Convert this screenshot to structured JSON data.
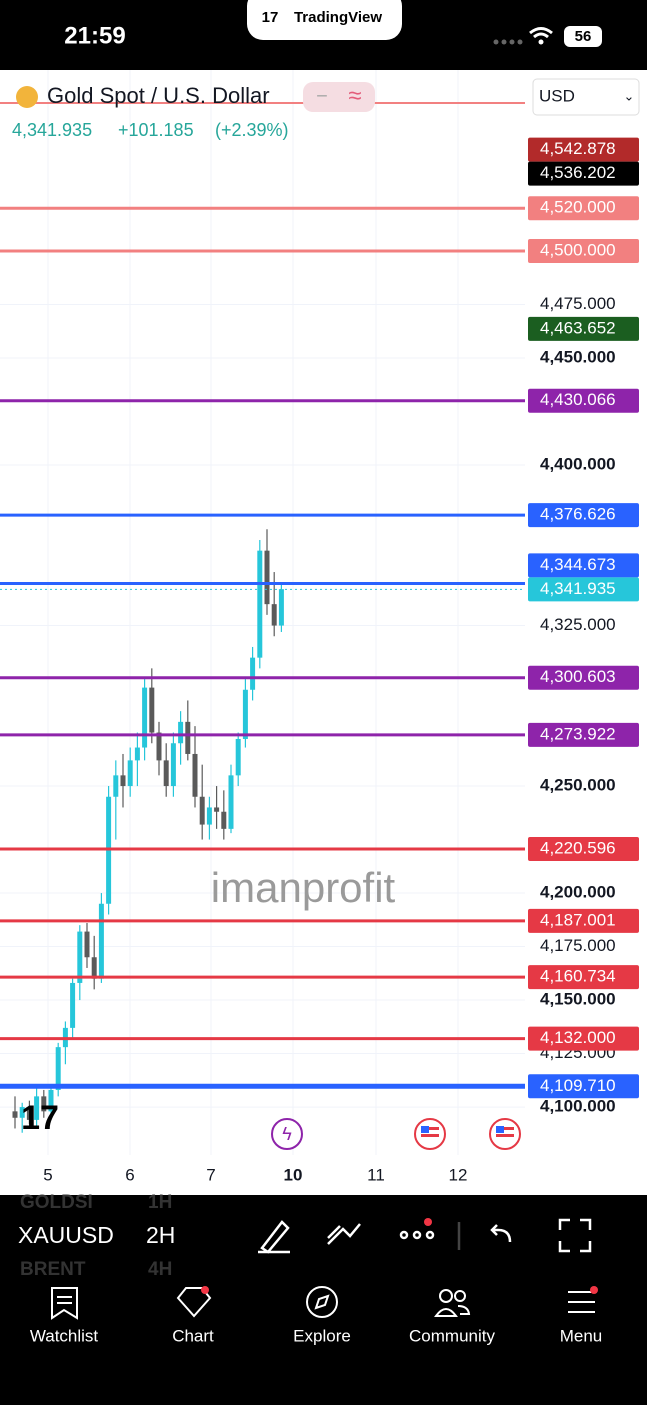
{
  "status_bar": {
    "time": "21:59",
    "app": "TradingView",
    "battery": "56"
  },
  "header": {
    "symbol_name": "Gold Spot / U.S. Dollar",
    "price": "4,341.935",
    "change": "+101.185",
    "change_pct": "(+2.39%)",
    "currency": "USD"
  },
  "chart_data": {
    "type": "candlestick",
    "ylim": [
      4077.6,
      4584.6
    ],
    "yticks": [
      {
        "value": 4475,
        "label": "4,475.000"
      },
      {
        "value": 4450,
        "label": "4,450.000"
      },
      {
        "value": 4400,
        "label": "4,400.000"
      },
      {
        "value": 4325,
        "label": "4,325.000"
      },
      {
        "value": 4250,
        "label": "4,250.000"
      },
      {
        "value": 4200,
        "label": "4,200.000"
      },
      {
        "value": 4175,
        "label": "4,175.000"
      },
      {
        "value": 4150,
        "label": "4,150.000"
      },
      {
        "value": 4125,
        "label": "4,125.000"
      },
      {
        "value": 4100,
        "label": "4,100.000"
      }
    ],
    "x_labels": [
      "5",
      "6",
      "7",
      "10",
      "11",
      "12"
    ],
    "up_color": "#26c6da",
    "down_color": "#5a5a5a",
    "candles": [
      [
        4098,
        4105,
        4090,
        4095
      ],
      [
        4095,
        4102,
        4088,
        4100
      ],
      [
        4100,
        4103,
        4092,
        4094
      ],
      [
        4094,
        4110,
        4090,
        4105
      ],
      [
        4105,
        4108,
        4095,
        4098
      ],
      [
        4098,
        4110,
        4094,
        4108
      ],
      [
        4108,
        4130,
        4105,
        4128
      ],
      [
        4128,
        4140,
        4120,
        4137
      ],
      [
        4137,
        4160,
        4132,
        4158
      ],
      [
        4158,
        4185,
        4150,
        4182
      ],
      [
        4182,
        4186,
        4165,
        4170
      ],
      [
        4170,
        4180,
        4155,
        4160
      ],
      [
        4160,
        4200,
        4158,
        4195
      ],
      [
        4195,
        4250,
        4190,
        4245
      ],
      [
        4245,
        4262,
        4225,
        4255
      ],
      [
        4255,
        4265,
        4240,
        4250
      ],
      [
        4250,
        4268,
        4245,
        4262
      ],
      [
        4262,
        4275,
        4250,
        4268
      ],
      [
        4268,
        4300,
        4262,
        4296
      ],
      [
        4296,
        4305,
        4270,
        4275
      ],
      [
        4275,
        4280,
        4255,
        4262
      ],
      [
        4262,
        4270,
        4245,
        4250
      ],
      [
        4250,
        4275,
        4245,
        4270
      ],
      [
        4270,
        4285,
        4260,
        4280
      ],
      [
        4280,
        4290,
        4262,
        4265
      ],
      [
        4265,
        4278,
        4240,
        4245
      ],
      [
        4245,
        4260,
        4225,
        4232
      ],
      [
        4232,
        4245,
        4225,
        4240
      ],
      [
        4240,
        4250,
        4230,
        4238
      ],
      [
        4238,
        4248,
        4225,
        4230
      ],
      [
        4230,
        4260,
        4228,
        4255
      ],
      [
        4255,
        4275,
        4250,
        4272
      ],
      [
        4272,
        4300,
        4268,
        4295
      ],
      [
        4295,
        4315,
        4290,
        4310
      ],
      [
        4310,
        4365,
        4305,
        4360
      ],
      [
        4360,
        4370,
        4330,
        4335
      ],
      [
        4335,
        4350,
        4320,
        4325
      ],
      [
        4325,
        4345,
        4322,
        4342
      ]
    ],
    "levels": [
      {
        "value": 4542.878,
        "label": "4,542.878",
        "color": "#b22a2a",
        "line": false
      },
      {
        "value": 4536.202,
        "label": "4,536.202",
        "color": "#000000",
        "line": false
      },
      {
        "value": 4520,
        "label": "4,520.000",
        "color": "#f28080",
        "line": true
      },
      {
        "value": 4500,
        "label": "4,500.000",
        "color": "#f28080",
        "line": true
      },
      {
        "value": 4463.652,
        "label": "4,463.652",
        "color": "#1b5e20",
        "line": false
      },
      {
        "value": 4430.066,
        "label": "4,430.066",
        "color": "#8e24aa",
        "line": true
      },
      {
        "value": 4376.626,
        "label": "4,376.626",
        "color": "#2962ff",
        "line": true
      },
      {
        "value": 4344.673,
        "label": "4,344.673",
        "color": "#2962ff",
        "line": true
      },
      {
        "value": 4341.935,
        "label": "4,341.935",
        "color": "#26c6da",
        "line": false
      },
      {
        "value": 4300.603,
        "label": "4,300.603",
        "color": "#8e24aa",
        "line": true
      },
      {
        "value": 4273.922,
        "label": "4,273.922",
        "color": "#8e24aa",
        "line": true
      },
      {
        "value": 4220.596,
        "label": "4,220.596",
        "color": "#e53945",
        "line": true
      },
      {
        "value": 4187.001,
        "label": "4,187.001",
        "color": "#e53945",
        "line": true
      },
      {
        "value": 4160.734,
        "label": "4,160.734",
        "color": "#e53945",
        "line": true
      },
      {
        "value": 4132,
        "label": "4,132.000",
        "color": "#e53945",
        "line": true
      },
      {
        "value": 4109.71,
        "label": "4,109.710",
        "color": "#2962ff",
        "line": true
      }
    ],
    "watermark": "imanprofit"
  },
  "toolbar": {
    "symbol": "XAUUSD",
    "interval": "2H",
    "ghost_symbols": [
      "GOLDSI",
      "BRENT"
    ],
    "ghost_intervals": [
      "1H",
      "4H"
    ]
  },
  "nav": [
    "Watchlist",
    "Chart",
    "Explore",
    "Community",
    "Menu"
  ]
}
